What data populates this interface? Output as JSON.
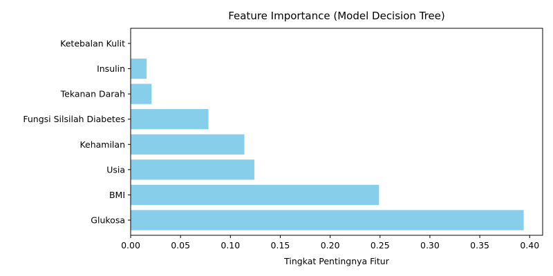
{
  "chart_data": {
    "type": "bar",
    "orientation": "horizontal",
    "title": "Feature Importance (Model Decision Tree)",
    "xlabel": "Tingkat Pentingnya Fitur",
    "ylabel": "",
    "categories": [
      "Glukosa",
      "BMI",
      "Usia",
      "Kehamilan",
      "Fungsi Silsilah Diabetes",
      "Tekanan Darah",
      "Insulin",
      "Ketebalan Kulit"
    ],
    "values": [
      0.394,
      0.249,
      0.124,
      0.114,
      0.078,
      0.021,
      0.016,
      0.0
    ],
    "xlim": [
      0.0,
      0.413
    ],
    "xticks": [
      "0.00",
      "0.05",
      "0.10",
      "0.15",
      "0.20",
      "0.25",
      "0.30",
      "0.35",
      "0.40"
    ],
    "bar_color": "#87ceeb",
    "grid": false,
    "legend": "none"
  }
}
